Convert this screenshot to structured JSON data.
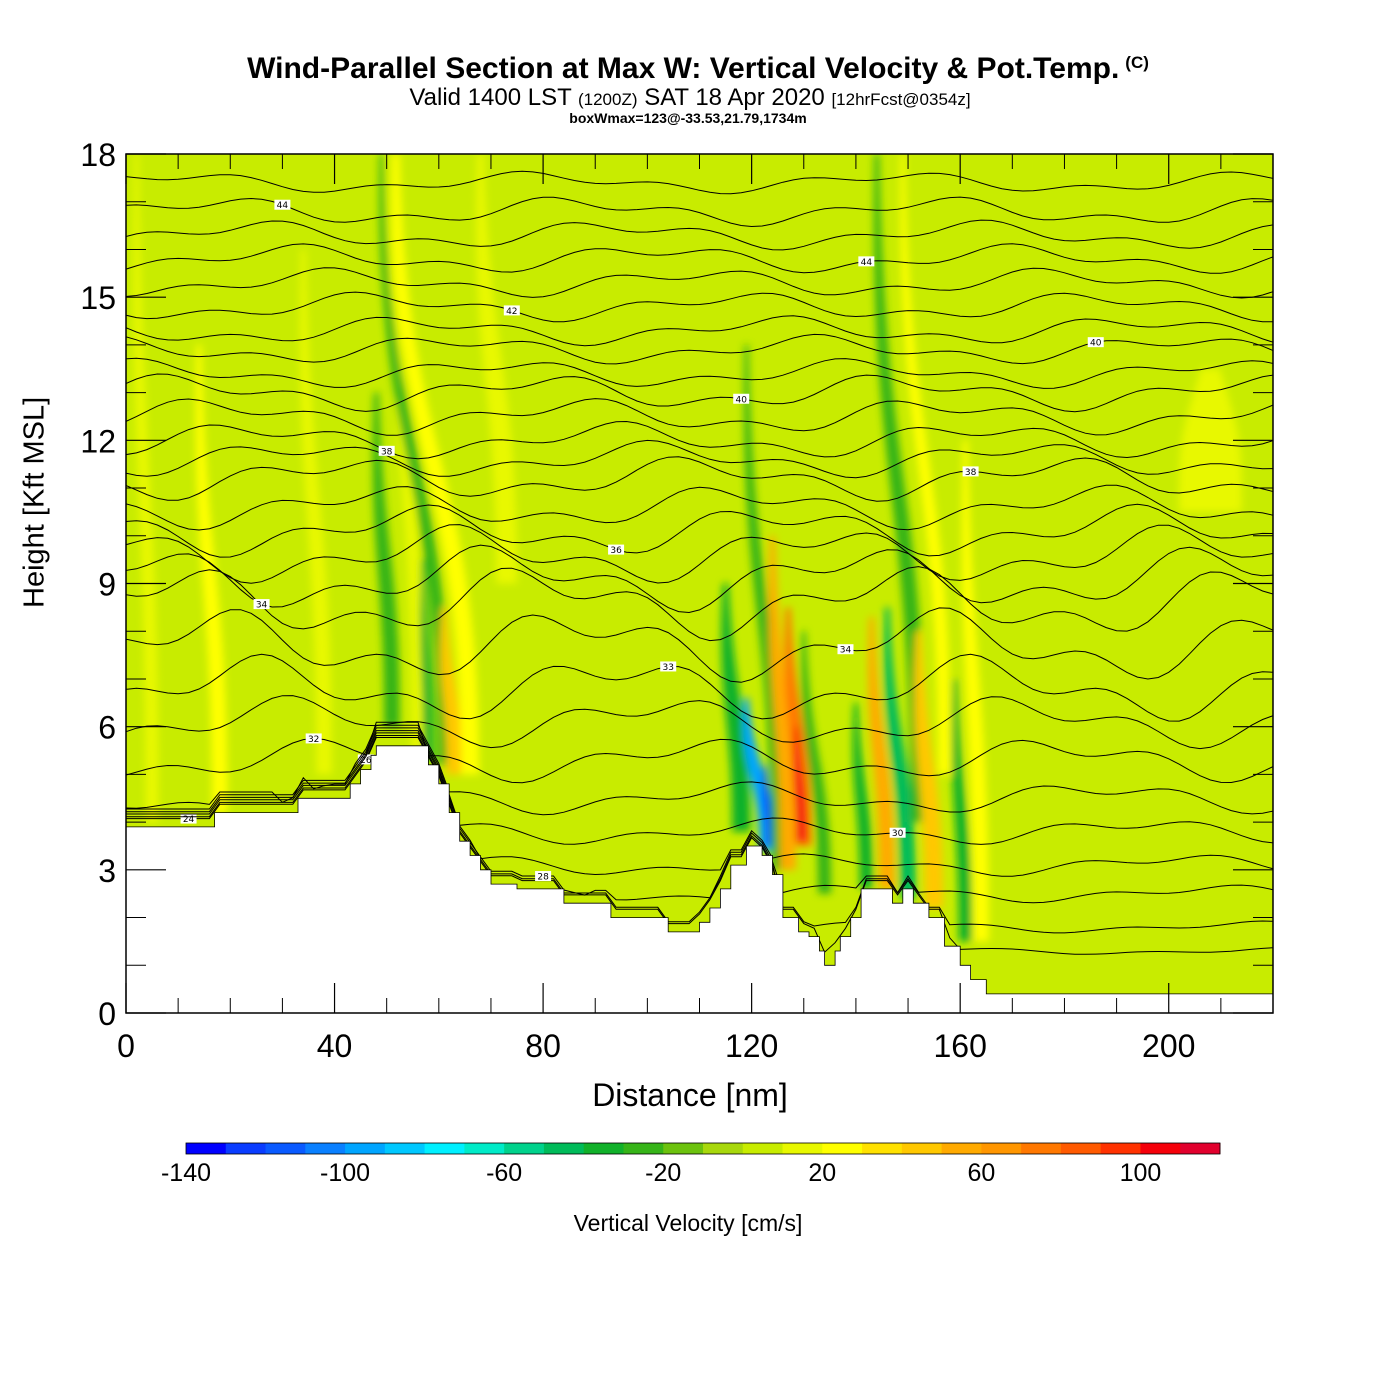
{
  "header": {
    "title": "Wind-Parallel Section at Max W: Vertical Velocity & Pot.Temp.",
    "copyright": "(C)",
    "valid_prefix": "Valid 1400 LST",
    "valid_utc": "(1200Z)",
    "valid_date": "SAT 18 Apr 2020",
    "forecast": "[12hrFcst@0354z]",
    "box_info": "boxWmax=123@-33.53,21.79,1734m"
  },
  "chart_data": {
    "type": "heatmap",
    "title": "Wind-Parallel Section at Max W: Vertical Velocity & Pot.Temp.",
    "xlabel": "Distance [nm]",
    "ylabel": "Height [Kft MSL]",
    "xlim": [
      0,
      220
    ],
    "ylim": [
      0,
      18
    ],
    "x_ticks": [
      "0",
      "40",
      "80",
      "120",
      "160",
      "200"
    ],
    "y_ticks": [
      "0",
      "3",
      "6",
      "9",
      "12",
      "15",
      "18"
    ],
    "colorbar": {
      "label": "Vertical Velocity [cm/s]",
      "range": [
        -140,
        120
      ],
      "step": 10,
      "tick_labels": [
        "-140",
        "-100",
        "-60",
        "-20",
        "20",
        "60",
        "100"
      ],
      "colors": [
        "#0000ff",
        "#0a3cff",
        "#0a5aff",
        "#0a80ff",
        "#00a5ff",
        "#00c8ff",
        "#00f0ff",
        "#00ebc8",
        "#00d28c",
        "#00bb5a",
        "#11b12a",
        "#36b418",
        "#6cc20e",
        "#a8d80c",
        "#c8ec00",
        "#e8f800",
        "#ffff00",
        "#ffe100",
        "#ffc800",
        "#ffaa00",
        "#ff9600",
        "#ff7800",
        "#ff5a00",
        "#ff3200",
        "#f5000a",
        "#e1002d",
        "#d20032"
      ]
    },
    "background_range": [
      0,
      10
    ],
    "terrain_kft": [
      [
        0,
        3.9
      ],
      [
        17,
        3.9
      ],
      [
        17,
        4.2
      ],
      [
        33,
        4.2
      ],
      [
        33,
        4.5
      ],
      [
        43,
        4.5
      ],
      [
        43,
        4.8
      ],
      [
        45,
        4.8
      ],
      [
        45,
        5.1
      ],
      [
        47,
        5.1
      ],
      [
        47,
        5.4
      ],
      [
        48,
        5.4
      ],
      [
        48,
        5.6
      ],
      [
        58,
        5.6
      ],
      [
        58,
        5.2
      ],
      [
        60,
        5.2
      ],
      [
        60,
        4.8
      ],
      [
        62,
        4.8
      ],
      [
        62,
        4.2
      ],
      [
        64,
        4.2
      ],
      [
        64,
        3.6
      ],
      [
        66,
        3.6
      ],
      [
        66,
        3.3
      ],
      [
        68,
        3.3
      ],
      [
        68,
        3.0
      ],
      [
        70,
        3.0
      ],
      [
        70,
        2.7
      ],
      [
        75,
        2.7
      ],
      [
        75,
        2.6
      ],
      [
        84,
        2.6
      ],
      [
        84,
        2.3
      ],
      [
        93,
        2.3
      ],
      [
        93,
        2.0
      ],
      [
        104,
        2.0
      ],
      [
        104,
        1.7
      ],
      [
        110,
        1.7
      ],
      [
        110,
        1.9
      ],
      [
        112,
        1.9
      ],
      [
        112,
        2.2
      ],
      [
        114,
        2.2
      ],
      [
        114,
        2.6
      ],
      [
        116,
        2.6
      ],
      [
        116,
        3.1
      ],
      [
        119,
        3.1
      ],
      [
        119,
        3.5
      ],
      [
        122,
        3.5
      ],
      [
        122,
        3.3
      ],
      [
        124,
        3.3
      ],
      [
        124,
        2.9
      ],
      [
        126,
        2.9
      ],
      [
        126,
        2.0
      ],
      [
        129,
        2.0
      ],
      [
        129,
        1.7
      ],
      [
        131,
        1.7
      ],
      [
        131,
        1.6
      ],
      [
        133,
        1.6
      ],
      [
        133,
        1.3
      ],
      [
        134,
        1.3
      ],
      [
        134,
        1.0
      ],
      [
        136,
        1.0
      ],
      [
        136,
        1.3
      ],
      [
        137,
        1.3
      ],
      [
        137,
        1.6
      ],
      [
        139,
        1.6
      ],
      [
        139,
        2.0
      ],
      [
        141,
        2.0
      ],
      [
        141,
        2.6
      ],
      [
        147,
        2.6
      ],
      [
        147,
        2.3
      ],
      [
        149,
        2.3
      ],
      [
        149,
        2.6
      ],
      [
        151,
        2.6
      ],
      [
        151,
        2.3
      ],
      [
        154,
        2.3
      ],
      [
        154,
        2.0
      ],
      [
        157,
        2.0
      ],
      [
        157,
        1.4
      ],
      [
        160,
        1.4
      ],
      [
        160,
        1.0
      ],
      [
        162,
        1.0
      ],
      [
        162,
        0.7
      ],
      [
        165,
        0.7
      ],
      [
        165,
        0.4
      ],
      [
        220,
        0.4
      ]
    ],
    "velocity_bands": [
      {
        "x": 5,
        "w": 2.5,
        "y0": 4,
        "y1": 18,
        "tilt": -3,
        "value": 15
      },
      {
        "x": 18,
        "w": 3,
        "y0": 4.2,
        "y1": 14,
        "tilt": -4,
        "value": 25
      },
      {
        "x": 38,
        "w": 3,
        "y0": 5,
        "y1": 16,
        "tilt": -4,
        "value": 18
      },
      {
        "x": 51,
        "w": 3,
        "y0": 6,
        "y1": 13,
        "tilt": -3,
        "value": -25
      },
      {
        "x": 56,
        "w": 2.5,
        "y0": 5.5,
        "y1": 18,
        "tilt": -5,
        "value": 18
      },
      {
        "x": 58,
        "w": 2,
        "y0": 5.3,
        "y1": 9.5,
        "tilt": -1,
        "value": -40
      },
      {
        "x": 61,
        "w": 2.5,
        "y0": 5.2,
        "y1": 18,
        "tilt": -12,
        "value": -25
      },
      {
        "x": 63,
        "w": 3,
        "y0": 5,
        "y1": 8.5,
        "tilt": -2,
        "value": 40
      },
      {
        "x": 66,
        "w": 3.5,
        "y0": 5,
        "y1": 18,
        "tilt": -14,
        "value": 20
      },
      {
        "x": 73,
        "w": 4,
        "y0": 9,
        "y1": 18,
        "tilt": -5,
        "value": 15
      },
      {
        "x": 118,
        "w": 3.5,
        "y0": 3.8,
        "y1": 9,
        "tilt": -3,
        "value": -40
      },
      {
        "x": 123,
        "w": 3,
        "y0": 3.4,
        "y1": 6.6,
        "tilt": -4,
        "value": -100
      },
      {
        "x": 123.5,
        "w": 1.3,
        "y0": 3.5,
        "y1": 5.2,
        "tilt": -1,
        "value": -140
      },
      {
        "x": 125,
        "w": 2.5,
        "y0": 3,
        "y1": 14,
        "tilt": -6,
        "value": -25
      },
      {
        "x": 127,
        "w": 3,
        "y0": 3,
        "y1": 10,
        "tilt": -3,
        "value": 50
      },
      {
        "x": 130,
        "w": 3,
        "y0": 3.5,
        "y1": 8.5,
        "tilt": -3,
        "value": 70
      },
      {
        "x": 129.5,
        "w": 2,
        "y0": 3.6,
        "y1": 6,
        "tilt": -1,
        "value": 100
      },
      {
        "x": 134,
        "w": 2.5,
        "y0": 2.5,
        "y1": 8,
        "tilt": -4,
        "value": -25
      },
      {
        "x": 142,
        "w": 2.5,
        "y0": 2.6,
        "y1": 6.5,
        "tilt": -2,
        "value": -40
      },
      {
        "x": 146,
        "w": 3,
        "y0": 2.6,
        "y1": 8.3,
        "tilt": -3,
        "value": 50
      },
      {
        "x": 150,
        "w": 3,
        "y0": 2.4,
        "y1": 8.5,
        "tilt": -4,
        "value": -50
      },
      {
        "x": 152,
        "w": 3,
        "y0": 4,
        "y1": 18,
        "tilt": -8,
        "value": -25
      },
      {
        "x": 155,
        "w": 3.5,
        "y0": 2.2,
        "y1": 8,
        "tilt": -3,
        "value": 45
      },
      {
        "x": 157,
        "w": 2.5,
        "y0": 5,
        "y1": 18,
        "tilt": -8,
        "value": 20
      },
      {
        "x": 161,
        "w": 2.5,
        "y0": 1.5,
        "y1": 7,
        "tilt": -2,
        "value": -40
      },
      {
        "x": 164,
        "w": 3,
        "y0": 1.5,
        "y1": 12,
        "tilt": -3,
        "value": 20
      },
      {
        "x": 208,
        "w": 12,
        "y0": 10.5,
        "y1": 13.5,
        "tilt": 0,
        "value": 15
      }
    ],
    "theta_contours": [
      {
        "label": "24",
        "base": 1.3,
        "amp": 0.05
      },
      {
        "label": "26",
        "base": 1.8,
        "amp": 0.08
      },
      {
        "label": "28",
        "base": 2.5,
        "amp": 0.12
      },
      {
        "label": "",
        "base": 3.1,
        "amp": 0.15
      },
      {
        "label": "30",
        "base": 3.8,
        "amp": 0.18
      },
      {
        "label": "",
        "base": 4.5,
        "amp": 0.22
      },
      {
        "label": "32",
        "base": 5.3,
        "amp": 0.3
      },
      {
        "label": "",
        "base": 6.1,
        "amp": 0.35
      },
      {
        "label": "33",
        "base": 6.8,
        "amp": 0.45
      },
      {
        "label": "34",
        "base": 7.7,
        "amp": 0.5
      },
      {
        "label": "",
        "base": 8.6,
        "amp": 0.5
      },
      {
        "label": "34",
        "base": 9.1,
        "amp": 0.45
      },
      {
        "label": "",
        "base": 9.6,
        "amp": 0.4
      },
      {
        "label": "36",
        "base": 10.1,
        "amp": 0.35
      },
      {
        "label": "",
        "base": 10.6,
        "amp": 0.3
      },
      {
        "label": "38",
        "base": 11.2,
        "amp": 0.3
      },
      {
        "label": "",
        "base": 11.6,
        "amp": 0.25
      },
      {
        "label": "38",
        "base": 12.0,
        "amp": 0.25
      },
      {
        "label": "",
        "base": 12.5,
        "amp": 0.25
      },
      {
        "label": "40",
        "base": 13.0,
        "amp": 0.25
      },
      {
        "label": "",
        "base": 13.4,
        "amp": 0.2
      },
      {
        "label": "40",
        "base": 13.9,
        "amp": 0.2
      },
      {
        "label": "",
        "base": 14.3,
        "amp": 0.2
      },
      {
        "label": "42",
        "base": 14.8,
        "amp": 0.2
      },
      {
        "label": "",
        "base": 15.3,
        "amp": 0.2
      },
      {
        "label": "44",
        "base": 15.8,
        "amp": 0.2
      },
      {
        "label": "",
        "base": 16.3,
        "amp": 0.2
      },
      {
        "label": "44",
        "base": 16.8,
        "amp": 0.2
      },
      {
        "label": "",
        "base": 17.4,
        "amp": 0.15
      }
    ]
  }
}
